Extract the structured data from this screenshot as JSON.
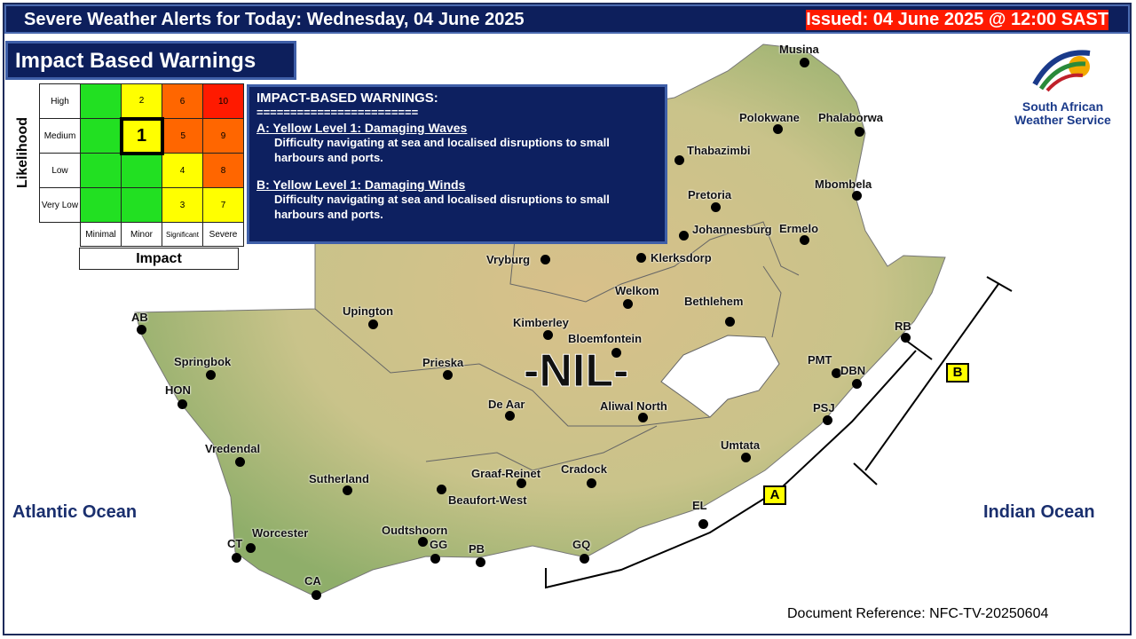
{
  "header": {
    "title": "Severe Weather Alerts for  Today: Wednesday, 04 June 2025",
    "issued": "Issued: 04 June 2025 @ 12:00 SAST"
  },
  "panel_title": "Impact Based Warnings",
  "matrix": {
    "y_label": "Likelihood",
    "x_label": "Impact",
    "rows": [
      {
        "label": "High",
        "cells": [
          "",
          "2",
          "6",
          "10"
        ],
        "colors": [
          "green",
          "yellow",
          "orange",
          "red"
        ]
      },
      {
        "label": "Medium",
        "cells": [
          "",
          "1",
          "5",
          "9"
        ],
        "colors": [
          "green",
          "yellow",
          "orange",
          "orange"
        ]
      },
      {
        "label": "Low",
        "cells": [
          "",
          "",
          "4",
          "8"
        ],
        "colors": [
          "green",
          "green",
          "yellow",
          "orange"
        ]
      },
      {
        "label": "Very Low",
        "cells": [
          "",
          "",
          "3",
          "7"
        ],
        "colors": [
          "green",
          "green",
          "yellow",
          "yellow"
        ]
      }
    ],
    "columns": [
      "Minimal",
      "Minor",
      "Significant",
      "Severe"
    ],
    "selected": "1"
  },
  "warnings": {
    "title": "IMPACT-BASED WARNINGS:",
    "divider": "========================",
    "items": [
      {
        "heading": "A: Yellow Level 1: Damaging Waves",
        "desc": "Difficulty navigating at sea and localised disruptions to small harbours and ports."
      },
      {
        "heading": "B: Yellow Level 1: Damaging Winds",
        "desc": "Difficulty navigating at sea and localised disruptions  to small harbours and ports."
      }
    ]
  },
  "map": {
    "status": "-NIL-",
    "oceans": [
      "Atlantic Ocean",
      "Indian Ocean"
    ],
    "zone_labels": [
      "A",
      "B"
    ],
    "cities": [
      "Musina",
      "Polokwane",
      "Phalaborwa",
      "Thabazimbi",
      "Mbombela",
      "Pretoria",
      "Johannesburg",
      "Ermelo",
      "Vryburg",
      "Klerksdorp",
      "Welkom",
      "Bethlehem",
      "Upington",
      "Kimberley",
      "Bloemfontein",
      "AB",
      "Springbok",
      "Prieska",
      "HON",
      "De Aar",
      "Aliwal North",
      "RB",
      "PMT",
      "DBN",
      "PSJ",
      "Umtata",
      "Vredendal",
      "Sutherland",
      "Graaf-Reinet",
      "Cradock",
      "Beaufort-West",
      "EL",
      "Worcester",
      "Oudtshoorn",
      "GG",
      "PB",
      "GQ",
      "CT",
      "CA"
    ]
  },
  "logo": {
    "name": "South African Weather Service"
  },
  "doc_ref": "Document Reference: NFC-TV-20250604",
  "colors": {
    "header": "#0d1f5c",
    "green": "#22e022",
    "yellow": "#ffff00",
    "orange": "#ff6600",
    "red": "#ff1a00"
  }
}
